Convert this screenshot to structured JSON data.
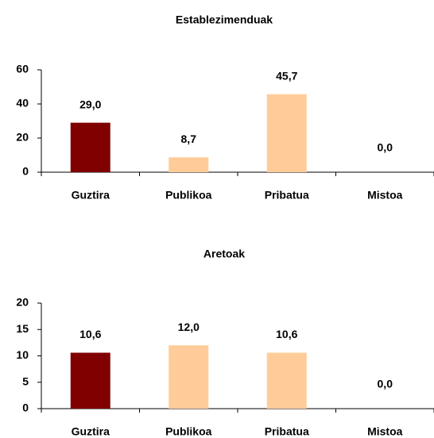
{
  "chart_data": [
    {
      "type": "bar",
      "title": "Establezimenduak",
      "categories": [
        "Guztira",
        "Publikoa",
        "Pribatua",
        "Mistoa"
      ],
      "values": [
        29.0,
        8.7,
        45.7,
        0.0
      ],
      "value_labels": [
        "29,0",
        "8,7",
        "45,7",
        "0,0"
      ],
      "colors": [
        "#800000",
        "#ffcc99",
        "#ffcc99",
        "#ffcc99"
      ],
      "ylim": [
        0,
        60
      ],
      "yticks": [
        0,
        20,
        40,
        60
      ]
    },
    {
      "type": "bar",
      "title": "Aretoak",
      "categories": [
        "Guztira",
        "Publikoa",
        "Pribatua",
        "Mistoa"
      ],
      "values": [
        10.6,
        12.0,
        10.6,
        0.0
      ],
      "value_labels": [
        "10,6",
        "12,0",
        "10,6",
        "0,0"
      ],
      "colors": [
        "#800000",
        "#ffcc99",
        "#ffcc99",
        "#ffcc99"
      ],
      "ylim": [
        0,
        20
      ],
      "yticks": [
        0,
        5,
        10,
        15,
        20
      ]
    }
  ]
}
